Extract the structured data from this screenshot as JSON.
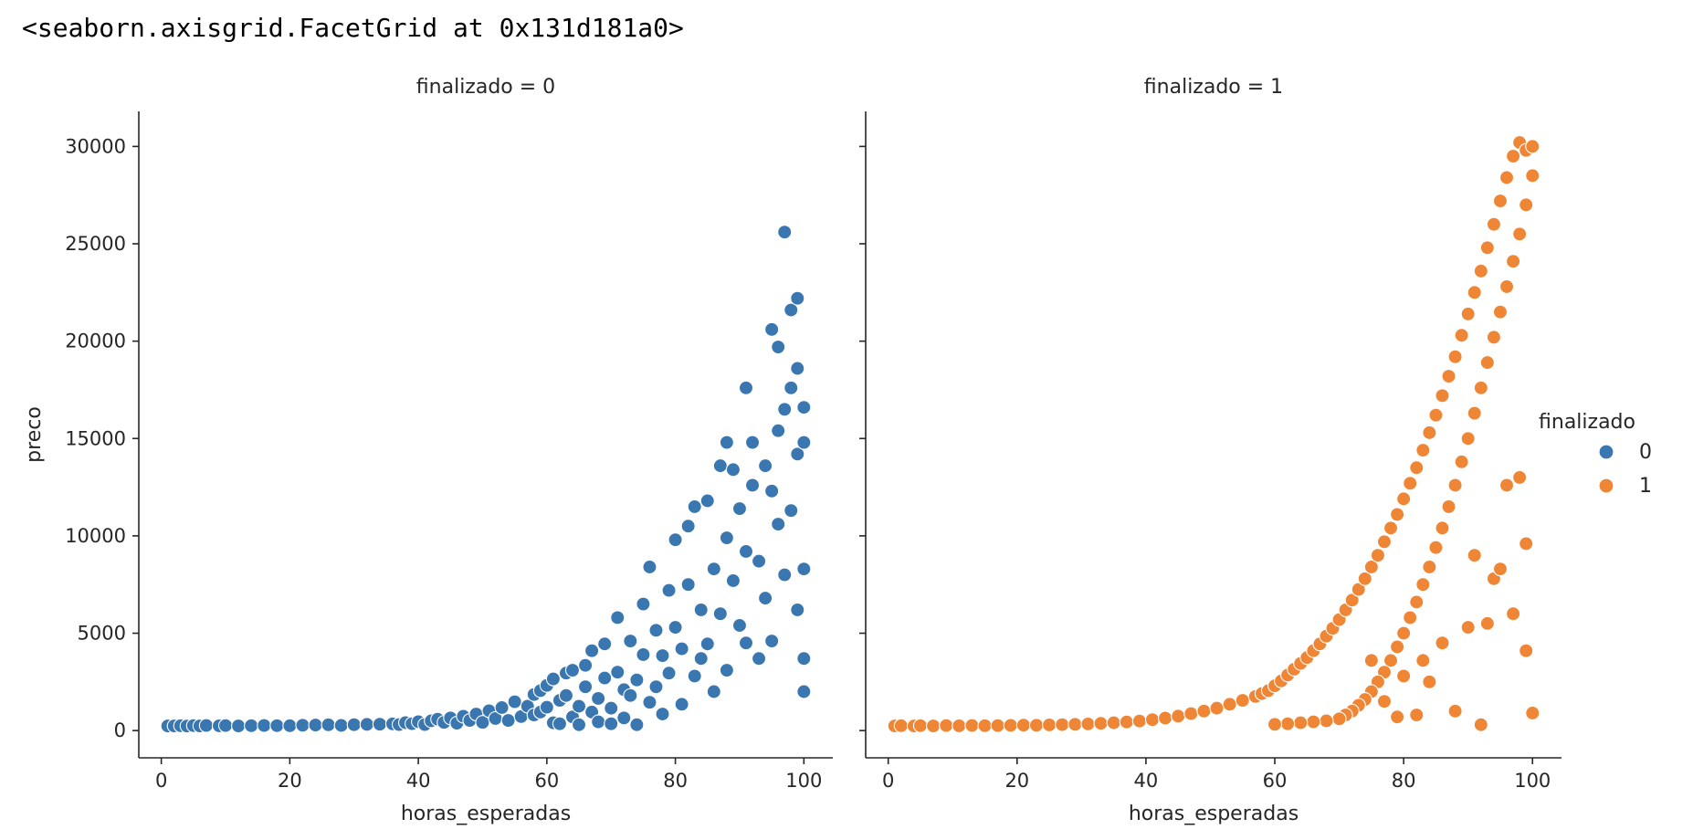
{
  "output_repr": "<seaborn.axisgrid.FacetGrid at 0x131d181a0>",
  "chart_data": {
    "type": "scatter",
    "facet_variable": "finalizado",
    "xlabel": "horas_esperadas",
    "ylabel": "preco",
    "xlim": [
      -3.5,
      104.5
    ],
    "ylim": [
      -1400,
      31800
    ],
    "x_ticks": [
      0,
      20,
      40,
      60,
      80,
      100
    ],
    "y_ticks": [
      0,
      5000,
      10000,
      15000,
      20000,
      25000,
      30000
    ],
    "x_tick_labels": [
      "0",
      "20",
      "40",
      "60",
      "80",
      "100"
    ],
    "y_tick_labels": [
      "0",
      "5000",
      "10000",
      "15000",
      "20000",
      "25000",
      "30000"
    ],
    "grid": false,
    "legend": {
      "title": "finalizado",
      "placement": "right",
      "entries": [
        {
          "label": "0",
          "color": "#3a76af"
        },
        {
          "label": "1",
          "color": "#ef8636"
        }
      ]
    },
    "facets": [
      {
        "title": "finalizado = 0",
        "color": "#3a76af",
        "points": [
          [
            1,
            235
          ],
          [
            2,
            240
          ],
          [
            3,
            248
          ],
          [
            4,
            232
          ],
          [
            5,
            255
          ],
          [
            6,
            238
          ],
          [
            7,
            262
          ],
          [
            9,
            245
          ],
          [
            10,
            258
          ],
          [
            12,
            240
          ],
          [
            14,
            250
          ],
          [
            16,
            262
          ],
          [
            18,
            252
          ],
          [
            20,
            248
          ],
          [
            22,
            275
          ],
          [
            24,
            282
          ],
          [
            26,
            298
          ],
          [
            28,
            265
          ],
          [
            30,
            302
          ],
          [
            32,
            318
          ],
          [
            34,
            328
          ],
          [
            36,
            345
          ],
          [
            37,
            310
          ],
          [
            38,
            405
          ],
          [
            39,
            352
          ],
          [
            40,
            455
          ],
          [
            41,
            310
          ],
          [
            42,
            500
          ],
          [
            43,
            585
          ],
          [
            44,
            420
          ],
          [
            45,
            650
          ],
          [
            46,
            380
          ],
          [
            47,
            735
          ],
          [
            48,
            520
          ],
          [
            49,
            850
          ],
          [
            50,
            420
          ],
          [
            51,
            1020
          ],
          [
            52,
            620
          ],
          [
            53,
            1180
          ],
          [
            54,
            520
          ],
          [
            55,
            1480
          ],
          [
            56,
            720
          ],
          [
            57,
            1250
          ],
          [
            58,
            1850
          ],
          [
            58,
            800
          ],
          [
            59,
            2050
          ],
          [
            59,
            950
          ],
          [
            60,
            2320
          ],
          [
            60,
            1200
          ],
          [
            61,
            400
          ],
          [
            61,
            2650
          ],
          [
            62,
            1550
          ],
          [
            62,
            350
          ],
          [
            63,
            2950
          ],
          [
            63,
            1800
          ],
          [
            64,
            700
          ],
          [
            64,
            3100
          ],
          [
            65,
            1250
          ],
          [
            65,
            300
          ],
          [
            66,
            2250
          ],
          [
            66,
            3350
          ],
          [
            67,
            950
          ],
          [
            67,
            4100
          ],
          [
            68,
            1650
          ],
          [
            68,
            450
          ],
          [
            69,
            2700
          ],
          [
            69,
            4450
          ],
          [
            70,
            1150
          ],
          [
            70,
            350
          ],
          [
            71,
            3000
          ],
          [
            71,
            5800
          ],
          [
            72,
            2100
          ],
          [
            72,
            650
          ],
          [
            73,
            4600
          ],
          [
            73,
            1800
          ],
          [
            74,
            300
          ],
          [
            74,
            2600
          ],
          [
            75,
            6500
          ],
          [
            75,
            3900
          ],
          [
            76,
            1450
          ],
          [
            76,
            8400
          ],
          [
            77,
            5150
          ],
          [
            77,
            2250
          ],
          [
            78,
            3850
          ],
          [
            78,
            850
          ],
          [
            79,
            7200
          ],
          [
            79,
            2950
          ],
          [
            80,
            9800
          ],
          [
            80,
            5300
          ],
          [
            81,
            4200
          ],
          [
            81,
            1350
          ],
          [
            82,
            10500
          ],
          [
            82,
            7500
          ],
          [
            83,
            2800
          ],
          [
            83,
            11500
          ],
          [
            84,
            6200
          ],
          [
            84,
            3700
          ],
          [
            85,
            11800
          ],
          [
            85,
            4450
          ],
          [
            86,
            8300
          ],
          [
            86,
            2000
          ],
          [
            87,
            13600
          ],
          [
            87,
            6000
          ],
          [
            88,
            14800
          ],
          [
            88,
            3100
          ],
          [
            88,
            9900
          ],
          [
            89,
            7700
          ],
          [
            89,
            13400
          ],
          [
            90,
            5400
          ],
          [
            90,
            11400
          ],
          [
            91,
            17600
          ],
          [
            91,
            4500
          ],
          [
            91,
            9200
          ],
          [
            92,
            14800
          ],
          [
            92,
            12600
          ],
          [
            93,
            3700
          ],
          [
            93,
            8700
          ],
          [
            94,
            13600
          ],
          [
            94,
            6800
          ],
          [
            95,
            20600
          ],
          [
            95,
            12300
          ],
          [
            95,
            4600
          ],
          [
            96,
            19700
          ],
          [
            96,
            15400
          ],
          [
            96,
            10600
          ],
          [
            97,
            25600
          ],
          [
            97,
            16500
          ],
          [
            97,
            8000
          ],
          [
            98,
            17600
          ],
          [
            98,
            21600
          ],
          [
            98,
            11300
          ],
          [
            99,
            22200
          ],
          [
            99,
            18600
          ],
          [
            99,
            6200
          ],
          [
            99,
            14200
          ],
          [
            100,
            16600
          ],
          [
            100,
            14800
          ],
          [
            100,
            8300
          ],
          [
            100,
            3700
          ],
          [
            100,
            2000
          ]
        ]
      },
      {
        "title": "finalizado = 1",
        "color": "#ef8636",
        "points": [
          [
            1,
            240
          ],
          [
            2,
            248
          ],
          [
            4,
            235
          ],
          [
            5,
            252
          ],
          [
            7,
            240
          ],
          [
            9,
            258
          ],
          [
            11,
            245
          ],
          [
            13,
            262
          ],
          [
            15,
            250
          ],
          [
            17,
            255
          ],
          [
            19,
            268
          ],
          [
            21,
            280
          ],
          [
            23,
            275
          ],
          [
            25,
            290
          ],
          [
            27,
            305
          ],
          [
            29,
            320
          ],
          [
            31,
            340
          ],
          [
            33,
            370
          ],
          [
            35,
            400
          ],
          [
            37,
            440
          ],
          [
            39,
            490
          ],
          [
            41,
            560
          ],
          [
            43,
            640
          ],
          [
            45,
            740
          ],
          [
            47,
            870
          ],
          [
            49,
            1000
          ],
          [
            51,
            1150
          ],
          [
            53,
            1350
          ],
          [
            55,
            1550
          ],
          [
            57,
            1750
          ],
          [
            58,
            1900
          ],
          [
            59,
            2050
          ],
          [
            60,
            2300
          ],
          [
            61,
            2550
          ],
          [
            62,
            2850
          ],
          [
            63,
            3150
          ],
          [
            64,
            3450
          ],
          [
            65,
            3750
          ],
          [
            66,
            4100
          ],
          [
            67,
            4450
          ],
          [
            68,
            4850
          ],
          [
            69,
            5250
          ],
          [
            70,
            5700
          ],
          [
            71,
            6200
          ],
          [
            72,
            6700
          ],
          [
            73,
            7250
          ],
          [
            74,
            7800
          ],
          [
            75,
            8400
          ],
          [
            76,
            9000
          ],
          [
            77,
            9700
          ],
          [
            78,
            10400
          ],
          [
            79,
            11100
          ],
          [
            80,
            11900
          ],
          [
            81,
            12700
          ],
          [
            82,
            13500
          ],
          [
            83,
            14400
          ],
          [
            84,
            15300
          ],
          [
            85,
            16200
          ],
          [
            86,
            17200
          ],
          [
            87,
            18200
          ],
          [
            88,
            19200
          ],
          [
            89,
            20300
          ],
          [
            90,
            21400
          ],
          [
            91,
            22500
          ],
          [
            92,
            23600
          ],
          [
            93,
            24800
          ],
          [
            94,
            26000
          ],
          [
            95,
            27200
          ],
          [
            96,
            28400
          ],
          [
            97,
            29500
          ],
          [
            98,
            30200
          ],
          [
            99,
            29800
          ],
          [
            100,
            30000
          ],
          [
            100,
            28500
          ],
          [
            99,
            27000
          ],
          [
            98,
            25500
          ],
          [
            97,
            24100
          ],
          [
            96,
            22800
          ],
          [
            95,
            21500
          ],
          [
            94,
            20200
          ],
          [
            93,
            18900
          ],
          [
            92,
            17600
          ],
          [
            91,
            16300
          ],
          [
            90,
            15000
          ],
          [
            89,
            13800
          ],
          [
            88,
            12600
          ],
          [
            87,
            11500
          ],
          [
            86,
            10400
          ],
          [
            85,
            9400
          ],
          [
            84,
            8400
          ],
          [
            83,
            7500
          ],
          [
            82,
            6600
          ],
          [
            81,
            5800
          ],
          [
            80,
            5000
          ],
          [
            79,
            4300
          ],
          [
            78,
            3600
          ],
          [
            77,
            3000
          ],
          [
            76,
            2500
          ],
          [
            75,
            2000
          ],
          [
            74,
            1600
          ],
          [
            73,
            1300
          ],
          [
            72,
            1000
          ],
          [
            71,
            800
          ],
          [
            70,
            600
          ],
          [
            68,
            500
          ],
          [
            66,
            450
          ],
          [
            64,
            400
          ],
          [
            62,
            350
          ],
          [
            60,
            320
          ],
          [
            75,
            3600
          ],
          [
            77,
            1500
          ],
          [
            79,
            700
          ],
          [
            80,
            2800
          ],
          [
            82,
            800
          ],
          [
            83,
            3600
          ],
          [
            84,
            2500
          ],
          [
            86,
            4500
          ],
          [
            88,
            1000
          ],
          [
            90,
            5300
          ],
          [
            91,
            9000
          ],
          [
            92,
            300
          ],
          [
            93,
            5500
          ],
          [
            94,
            7800
          ],
          [
            95,
            8300
          ],
          [
            96,
            12600
          ],
          [
            97,
            6000
          ],
          [
            98,
            13000
          ],
          [
            99,
            4100
          ],
          [
            99,
            9600
          ],
          [
            100,
            900
          ]
        ]
      }
    ]
  }
}
